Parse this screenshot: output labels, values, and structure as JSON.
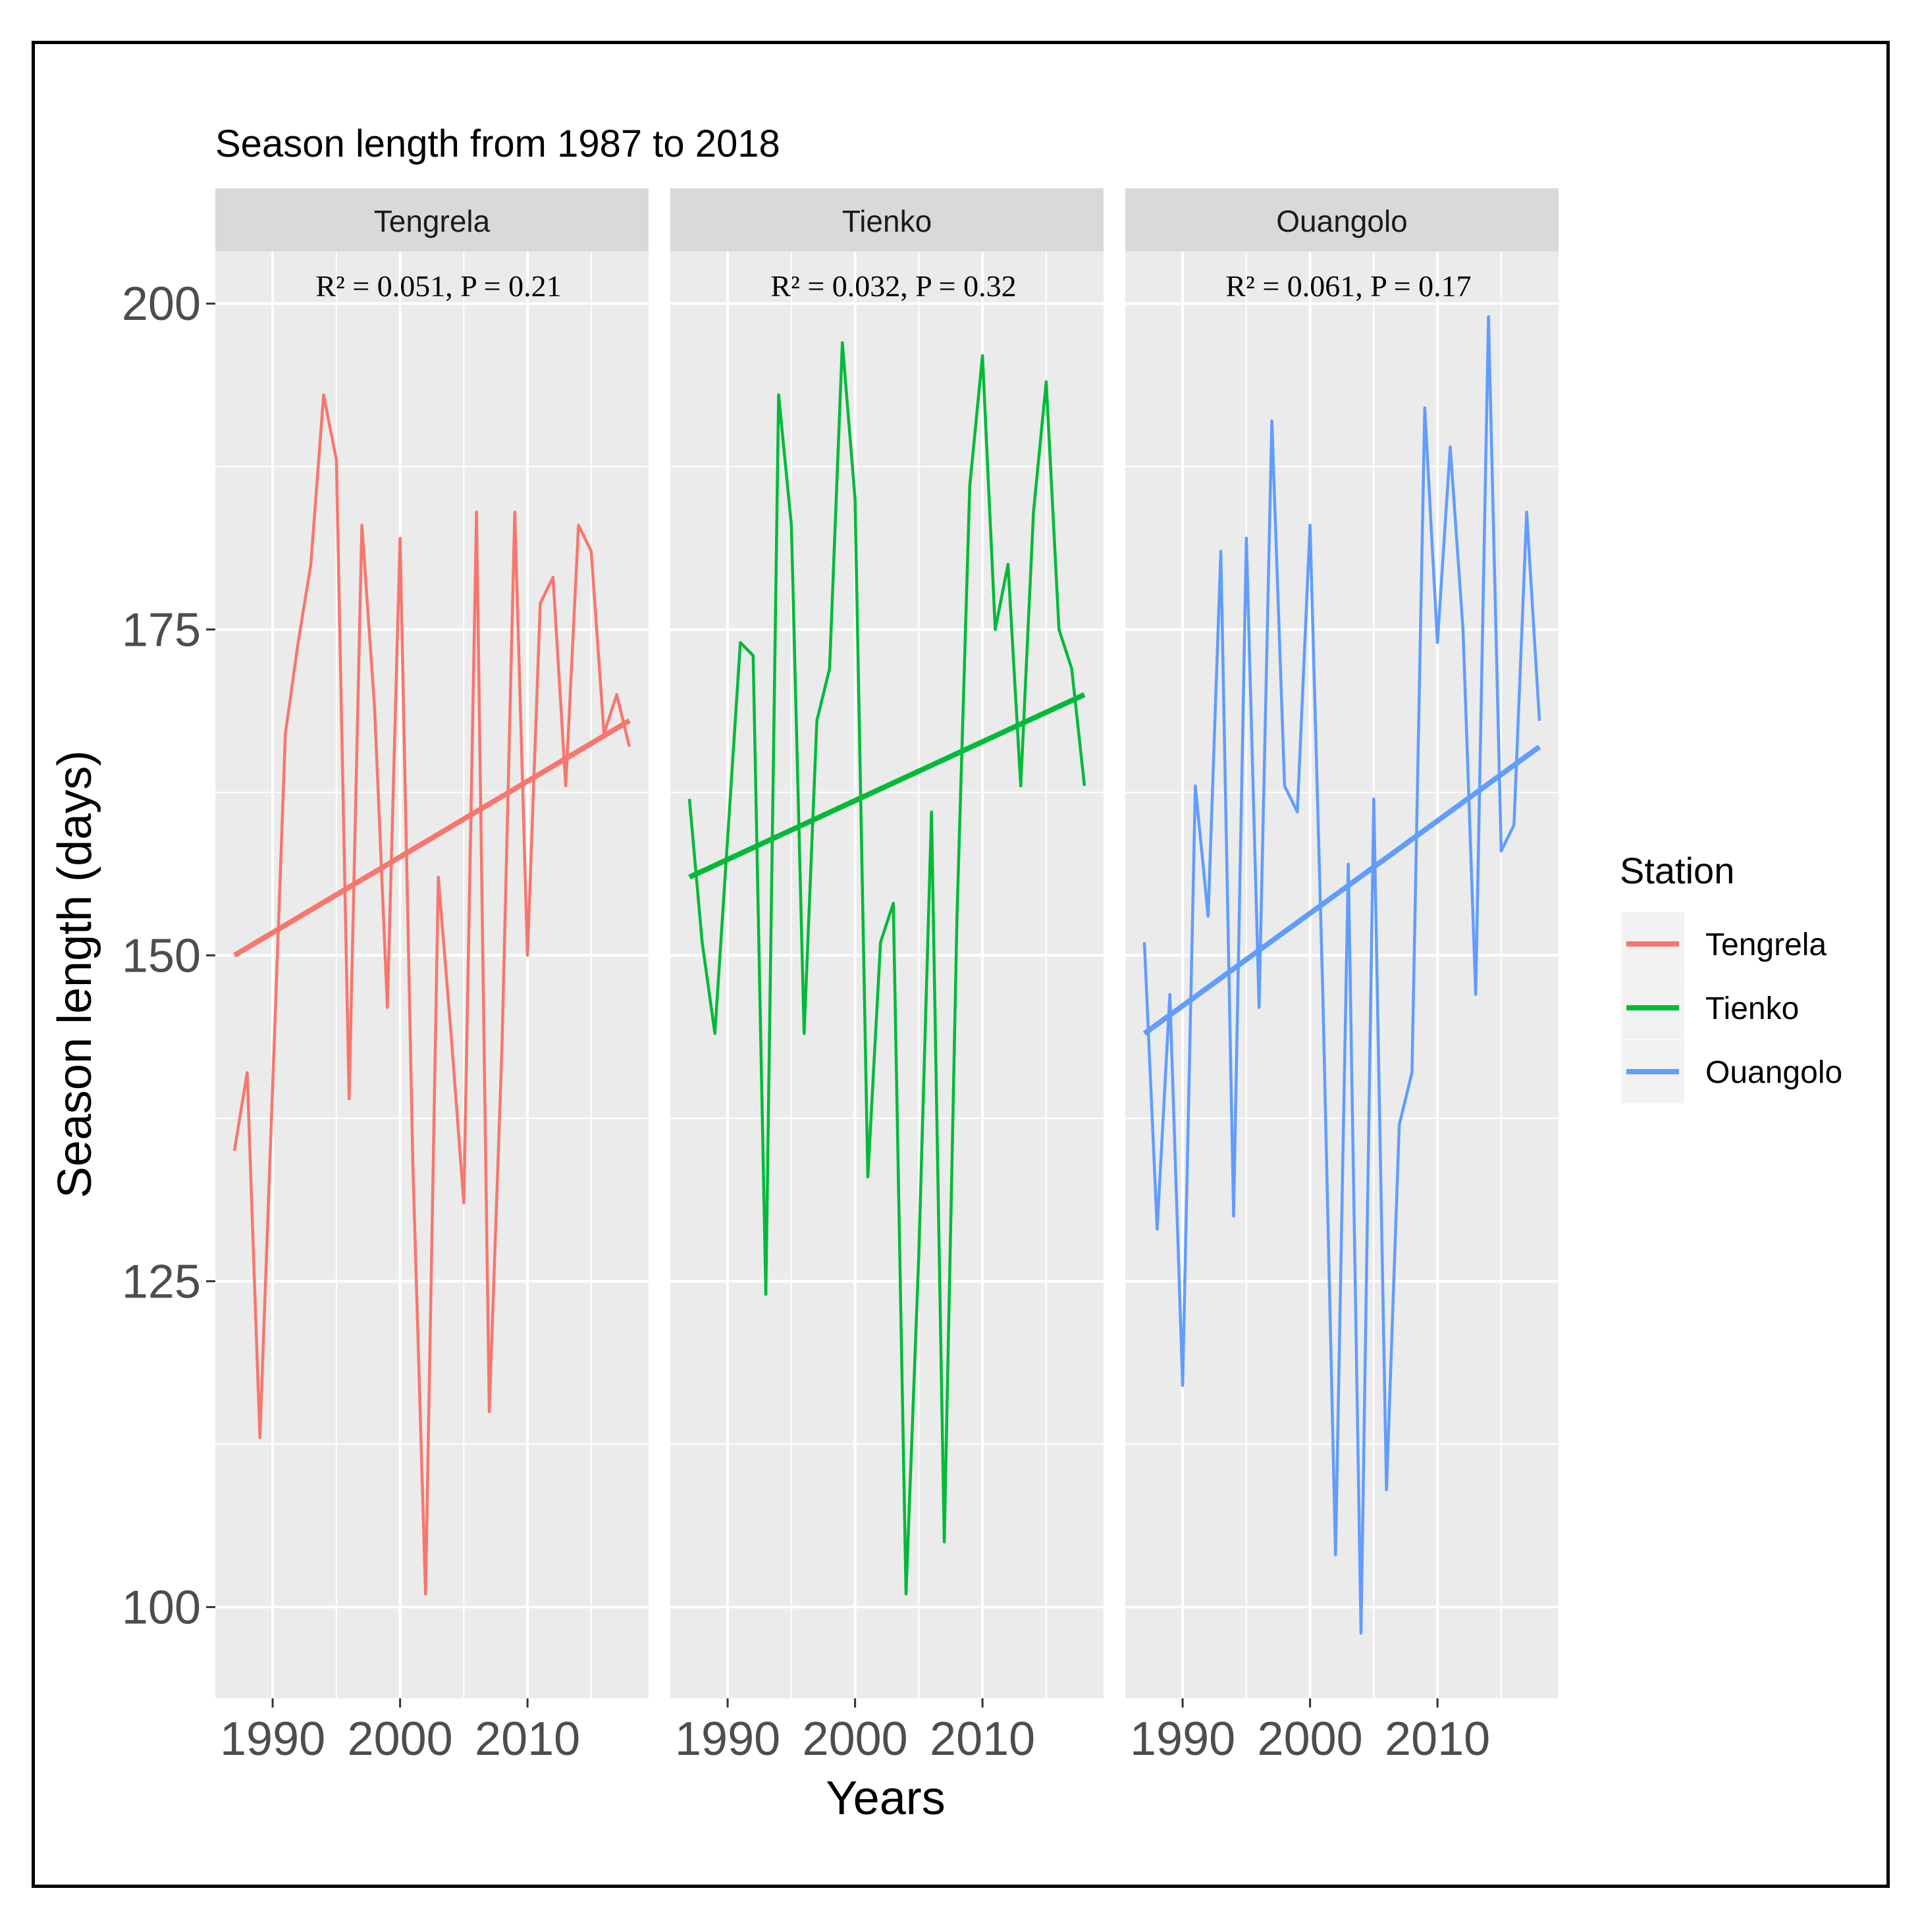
{
  "chart_data": {
    "type": "line",
    "title": "Season length from 1987 to 2018",
    "xlabel": "Years",
    "ylabel": "Season length (days)",
    "xlim": [
      1985.5,
      2019.5
    ],
    "ylim": [
      93,
      204
    ],
    "x_ticks": [
      1990,
      2000,
      2010
    ],
    "x_tick_labels": [
      "1990",
      "2000",
      "2010"
    ],
    "y_ticks": [
      100,
      125,
      150,
      175,
      200
    ],
    "y_tick_labels": [
      "100",
      "125",
      "150",
      "175",
      "200"
    ],
    "grid": true,
    "legend": {
      "title": "Station",
      "position": "right",
      "entries": [
        "Tengrela",
        "Tienko",
        "Ouangolo"
      ]
    },
    "x": [
      1987,
      1988,
      1989,
      1990,
      1991,
      1992,
      1993,
      1994,
      1995,
      1996,
      1997,
      1998,
      1999,
      2000,
      2001,
      2002,
      2003,
      2004,
      2005,
      2006,
      2007,
      2008,
      2009,
      2010,
      2011,
      2012,
      2013,
      2014,
      2015,
      2016,
      2017,
      2018
    ],
    "series": [
      {
        "name": "Tengrela",
        "color": "#F8766D",
        "stats_label": "R² = 0.051,  P = 0.21",
        "values": [
          135,
          141,
          113,
          140,
          167,
          174,
          180,
          193,
          188,
          139,
          183,
          169,
          146,
          182,
          134,
          101,
          156,
          144,
          131,
          184,
          115,
          143,
          184,
          150,
          177,
          179,
          163,
          183,
          181,
          167,
          170,
          166
        ],
        "trend": {
          "start": [
            1987,
            150
          ],
          "end": [
            2018,
            168
          ]
        }
      },
      {
        "name": "Tienko",
        "color": "#00BA38",
        "stats_label": "R² = 0.032,  P = 0.32",
        "values": [
          162,
          151,
          144,
          159,
          174,
          173,
          124,
          193,
          183,
          144,
          168,
          172,
          197,
          185,
          133,
          151,
          154,
          101,
          127,
          161,
          105,
          153,
          186,
          196,
          175,
          180,
          163,
          184,
          194,
          175,
          172,
          163
        ],
        "trend": {
          "start": [
            1987,
            156
          ],
          "end": [
            2018,
            170
          ]
        }
      },
      {
        "name": "Ouangolo",
        "color": "#619CFF",
        "stats_label": "R² = 0.061,  P = 0.17",
        "values": [
          151,
          129,
          147,
          117,
          163,
          153,
          181,
          130,
          182,
          146,
          191,
          163,
          161,
          183,
          147,
          104,
          157,
          98,
          162,
          109,
          137,
          141,
          192,
          174,
          189,
          175,
          147,
          199,
          158,
          160,
          184,
          168
        ],
        "trend": {
          "start": [
            1987,
            144
          ],
          "end": [
            2018,
            166
          ]
        }
      }
    ]
  }
}
